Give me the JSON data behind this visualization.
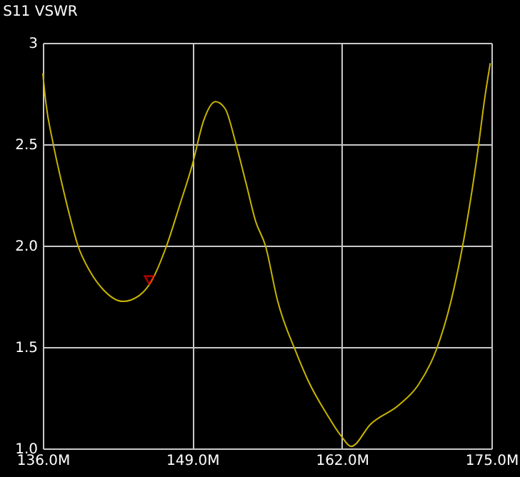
{
  "chart_data": {
    "type": "line",
    "title": "S11 VSWR",
    "xlim": [
      136,
      175
    ],
    "ylim": [
      1.0,
      3
    ],
    "xticks": [
      {
        "value": 136,
        "label": "136.0M"
      },
      {
        "value": 149,
        "label": "149.0M"
      },
      {
        "value": 162,
        "label": "162.0M"
      },
      {
        "value": 175,
        "label": "175.0M"
      }
    ],
    "yticks": [
      {
        "value": 1.0,
        "label": "1.0"
      },
      {
        "value": 1.5,
        "label": "1.5"
      },
      {
        "value": 2.0,
        "label": "2.0"
      },
      {
        "value": 2.5,
        "label": "2.5"
      },
      3
    ],
    "grid": true,
    "line_style": "solid",
    "series": [
      {
        "color": "#c8b400",
        "x": [
          136,
          136.25,
          136.87,
          137.6,
          138.3,
          139.05,
          140.1,
          141.3,
          142.97,
          144.4,
          145.45,
          146.76,
          147.9,
          149,
          149.97,
          151.0,
          151.85,
          152.75,
          153.7,
          154.5,
          155.35,
          156.4,
          158.05,
          159.1,
          160.7,
          161.95,
          162.8,
          164.5,
          166.97,
          168.6,
          170.2,
          171.5,
          172.55,
          173.8,
          174.4,
          174.9
        ],
        "values": [
          2.85,
          2.71,
          2.51,
          2.32,
          2.155,
          2.0,
          1.873,
          1.78,
          1.725,
          1.755,
          1.826,
          2.0,
          2.2,
          2.4,
          2.615,
          2.71,
          2.675,
          2.51,
          2.3,
          2.12,
          2.0,
          1.73,
          1.47,
          1.33,
          1.168,
          1.06,
          1.01,
          1.12,
          1.215,
          1.31,
          1.485,
          1.73,
          2.015,
          2.46,
          2.72,
          2.9
        ]
      },
      {
        "type": "scatter",
        "marker": "triangle",
        "color": "#ff0000",
        "x": [
          145.25
        ],
        "values": [
          1.83
        ]
      }
    ]
  }
}
